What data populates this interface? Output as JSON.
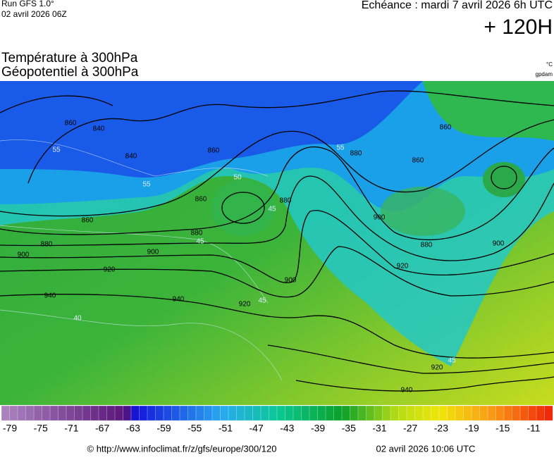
{
  "header": {
    "run": "Run GFS 1.0°",
    "run_date": "02 avril 2026 06Z",
    "valid": "Echéance : mardi 7 avril 2026 6h UTC",
    "lead": "+ 120H",
    "title_temp": "Température à 300hPa",
    "title_geo": "Géopotentiel à 300hPa",
    "unit_temp": "°C",
    "unit_geo": "gpdam"
  },
  "map": {
    "contour_labels": [
      "860",
      "840",
      "840",
      "860",
      "860",
      "860",
      "880",
      "880",
      "900",
      "900",
      "920",
      "940",
      "940",
      "920",
      "900",
      "880",
      "880",
      "860",
      "860",
      "900",
      "880",
      "920",
      "900",
      "920",
      "940"
    ],
    "isotherm_labels": [
      "55",
      "55",
      "55",
      "50",
      "45",
      "45",
      "45",
      "45",
      "40"
    ]
  },
  "colorbar": {
    "labels": [
      -79,
      -75,
      -71,
      -67,
      -63,
      -59,
      -55,
      -51,
      -47,
      -43,
      -39,
      -35,
      -31,
      -27,
      -23,
      -19,
      -15,
      -11
    ]
  },
  "footer": {
    "source": "© http://www.infoclimat.fr/z/gfs/europe/300/120",
    "date": "02 avril 2026 10:06 UTC"
  }
}
